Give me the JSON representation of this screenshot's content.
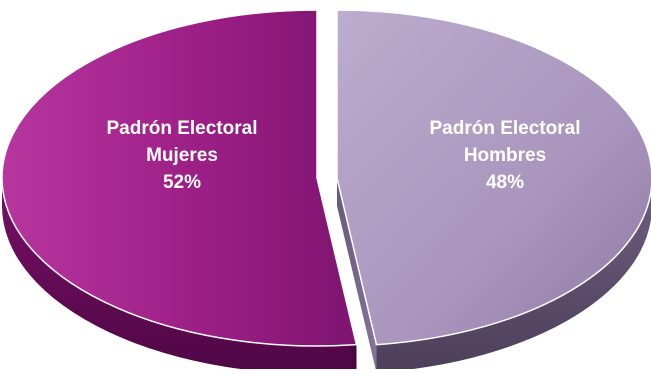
{
  "chart_data": {
    "type": "pie",
    "title": "",
    "slices": [
      {
        "label_lines": [
          "Padrón Electoral",
          "Mujeres"
        ],
        "value": 52,
        "value_label": "52%",
        "color": "#8e1f7c"
      },
      {
        "label_lines": [
          "Padrón Electoral",
          "Hombres"
        ],
        "value": 48,
        "value_label": "48%",
        "color": "#a894bd"
      }
    ],
    "legend": "none",
    "style": "3d-exploded"
  }
}
